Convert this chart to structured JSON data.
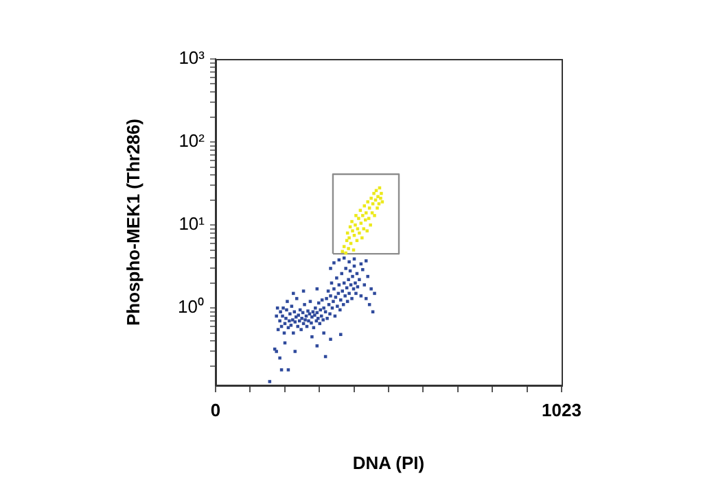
{
  "chart_data": {
    "type": "scatter",
    "xlabel": "DNA (PI)",
    "ylabel": "Phospho-MEK1 (Thr286)",
    "log": "y",
    "grid": false,
    "legend": false,
    "marker": "square",
    "xlim": [
      0,
      1023
    ],
    "xticks": [
      0,
      {
        "value": 102.3,
        "label": null
      },
      {
        "value": 204.6,
        "label": null
      },
      {
        "value": 306.9,
        "label": null
      },
      {
        "value": 409.2,
        "label": null
      },
      {
        "value": 511.5,
        "label": null
      },
      {
        "value": 613.8,
        "label": null
      },
      {
        "value": 716.1,
        "label": null
      },
      {
        "value": 818.4,
        "label": null
      },
      {
        "value": 920.7,
        "label": null
      },
      1023
    ],
    "ylim": [
      0.117,
      1000
    ],
    "yticks": [
      {
        "value": 0.2,
        "label": null
      },
      {
        "value": 0.3,
        "label": null
      },
      {
        "value": 0.4,
        "label": null
      },
      {
        "value": 0.5,
        "label": null
      },
      {
        "value": 0.6,
        "label": null
      },
      {
        "value": 0.7,
        "label": null
      },
      {
        "value": 0.8,
        "label": null
      },
      {
        "value": 0.9,
        "label": null
      },
      {
        "value": 1,
        "label": "10⁰"
      },
      {
        "value": 2,
        "label": null
      },
      {
        "value": 3,
        "label": null
      },
      {
        "value": 4,
        "label": null
      },
      {
        "value": 5,
        "label": null
      },
      {
        "value": 6,
        "label": null
      },
      {
        "value": 7,
        "label": null
      },
      {
        "value": 8,
        "label": null
      },
      {
        "value": 9,
        "label": null
      },
      {
        "value": 10,
        "label": "10¹"
      },
      {
        "value": 20,
        "label": null
      },
      {
        "value": 30,
        "label": null
      },
      {
        "value": 40,
        "label": null
      },
      {
        "value": 50,
        "label": null
      },
      {
        "value": 60,
        "label": null
      },
      {
        "value": 70,
        "label": null
      },
      {
        "value": 80,
        "label": null
      },
      {
        "value": 90,
        "label": null
      },
      {
        "value": 100,
        "label": "10²"
      },
      {
        "value": 200,
        "label": null
      },
      {
        "value": 300,
        "label": null
      },
      {
        "value": 400,
        "label": null
      },
      {
        "value": 500,
        "label": null
      },
      {
        "value": 600,
        "label": null
      },
      {
        "value": 700,
        "label": null
      },
      {
        "value": 800,
        "label": null
      },
      {
        "value": 900,
        "label": null
      },
      {
        "value": 1000,
        "label": "10³"
      }
    ],
    "series": [
      {
        "color": "#2f4a9c",
        "x": [
          185,
          190,
          192,
          195,
          198,
          200,
          203,
          205,
          208,
          210,
          212,
          215,
          218,
          220,
          223,
          225,
          228,
          230,
          233,
          235,
          238,
          240,
          243,
          245,
          248,
          250,
          253,
          255,
          258,
          260,
          263,
          265,
          268,
          270,
          273,
          275,
          278,
          280,
          283,
          285,
          288,
          290,
          293,
          295,
          298,
          300,
          303,
          305,
          308,
          310,
          313,
          315,
          318,
          320,
          325,
          328,
          330,
          333,
          335,
          338,
          340,
          343,
          345,
          348,
          350,
          353,
          355,
          358,
          360,
          363,
          365,
          368,
          370,
          373,
          375,
          378,
          380,
          383,
          385,
          388,
          390,
          393,
          395,
          398,
          400,
          403,
          405,
          408,
          410,
          413,
          415,
          418,
          420,
          425,
          430,
          435,
          440,
          445,
          450,
          455,
          460,
          465,
          470,
          350,
          365,
          380,
          395,
          410,
          430,
          445,
          340,
          175,
          180,
          195,
          215,
          205,
          235,
          300,
          325,
          340,
          370,
          160,
          190,
          180,
          183,
          260,
          230,
          300,
          285,
          320
        ],
        "values": [
          0.55,
          0.7,
          0.9,
          0.6,
          0.8,
          1.0,
          0.5,
          0.65,
          0.75,
          0.95,
          1.2,
          0.58,
          0.7,
          0.85,
          0.62,
          1.05,
          0.72,
          0.5,
          0.9,
          0.68,
          0.78,
          1.3,
          0.6,
          0.82,
          0.7,
          0.95,
          0.55,
          0.75,
          0.88,
          0.65,
          1.1,
          0.72,
          0.8,
          0.6,
          0.92,
          0.7,
          0.85,
          1.2,
          0.66,
          0.78,
          0.9,
          0.58,
          0.82,
          1.0,
          0.7,
          0.88,
          0.75,
          1.15,
          0.65,
          0.95,
          0.8,
          1.25,
          0.72,
          1.0,
          0.9,
          1.3,
          0.75,
          1.6,
          1.1,
          0.85,
          1.4,
          2.0,
          1.0,
          1.2,
          1.7,
          0.8,
          1.35,
          2.3,
          1.05,
          1.5,
          1.9,
          0.95,
          1.25,
          2.6,
          1.6,
          1.1,
          2.0,
          1.4,
          3.0,
          1.75,
          1.2,
          2.2,
          1.5,
          2.8,
          1.9,
          1.3,
          2.4,
          1.7,
          3.2,
          2.0,
          1.5,
          2.6,
          1.8,
          2.2,
          1.4,
          2.9,
          1.9,
          1.3,
          2.4,
          1.1,
          1.7,
          0.9,
          1.5,
          3.5,
          3.8,
          4.0,
          3.6,
          3.9,
          3.4,
          3.7,
          3.0,
          0.32,
          0.3,
          0.18,
          0.18,
          0.38,
          0.3,
          0.35,
          0.26,
          0.42,
          0.48,
          0.13,
          0.25,
          0.8,
          1.0,
          1.6,
          1.5,
          1.7,
          0.45,
          0.5
        ]
      },
      {
        "color": "#ece91c",
        "x": [
          375,
          380,
          385,
          388,
          390,
          393,
          395,
          398,
          400,
          403,
          405,
          408,
          410,
          413,
          415,
          418,
          420,
          423,
          425,
          428,
          430,
          433,
          435,
          438,
          440,
          443,
          445,
          448,
          450,
          453,
          455,
          458,
          460,
          463,
          465,
          468,
          470,
          473,
          475,
          478,
          480,
          483,
          485,
          488,
          490,
          493
        ],
        "values": [
          4.8,
          5.5,
          4.6,
          6.5,
          8,
          5.2,
          7,
          9.5,
          6,
          11,
          8.5,
          5,
          7.5,
          10,
          13,
          6.5,
          9,
          12,
          8,
          15,
          10.5,
          7,
          13,
          9,
          17,
          11.5,
          14,
          8.5,
          19,
          12,
          16,
          10,
          21,
          14,
          18,
          24,
          13,
          20,
          26,
          16,
          22,
          18,
          28,
          21,
          24,
          19
        ]
      },
      {
        "type": "line",
        "marker": "none",
        "color": "#8c8c8c",
        "x": [
          347,
          347,
          542,
          542
        ],
        "values": [
          4.5,
          41,
          41,
          4.5
        ]
      },
      {
        "type": "line",
        "marker": "none",
        "color": "#8c8c8c",
        "x": [
          347,
          542
        ],
        "values": [
          4.5,
          4.5
        ]
      }
    ]
  }
}
